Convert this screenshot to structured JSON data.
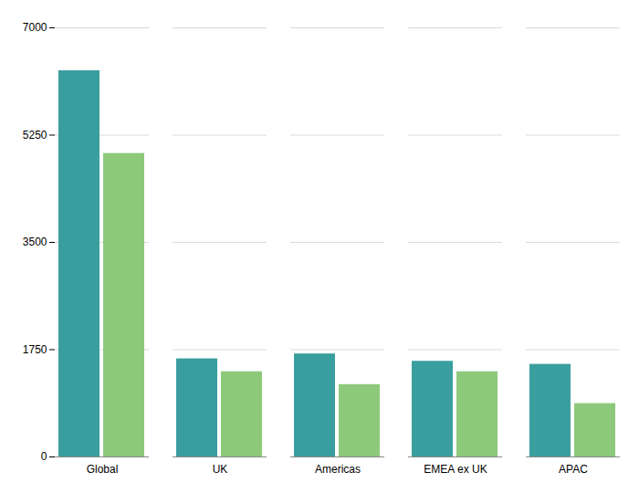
{
  "chart_data": {
    "type": "bar",
    "categories": [
      "Global",
      "UK",
      "Americas",
      "EMEA ex UK",
      "APAC"
    ],
    "series": [
      {
        "color": "#3a9e9f",
        "values": [
          6300,
          1600,
          1680,
          1560,
          1510
        ]
      },
      {
        "color": "#8dc97a",
        "values": [
          4950,
          1390,
          1180,
          1390,
          870
        ]
      }
    ],
    "ylim": [
      0,
      7000
    ],
    "yticks": [
      0,
      1750,
      3500,
      5250,
      7000
    ],
    "grid": true
  }
}
